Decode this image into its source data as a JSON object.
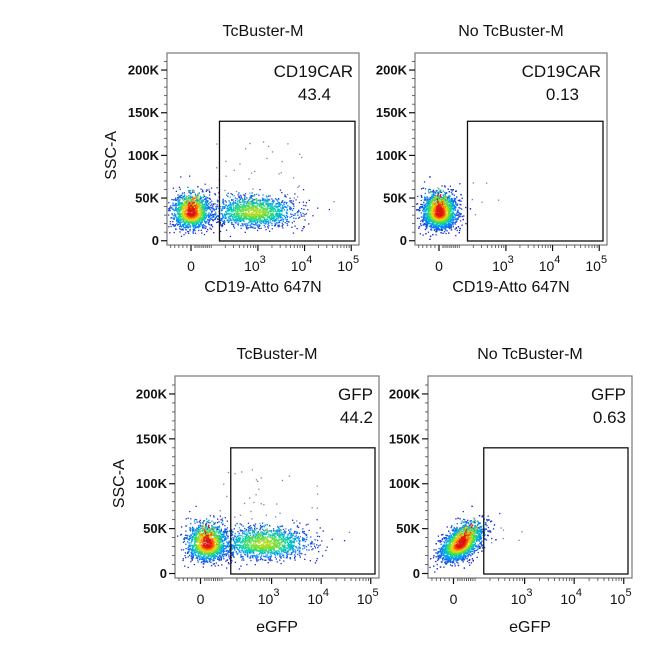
{
  "chart_data": [
    {
      "type": "scatter",
      "subtype": "flow-cytometry-density",
      "panel_position": "top-left",
      "title": "TcBuster-M",
      "xlabel": "CD19-Atto 647N",
      "ylabel": "SSC-A",
      "x_scale": "biexponential",
      "x_tick_labels": [
        {
          "base": "0",
          "exp": ""
        },
        {
          "base": "10",
          "exp": "3"
        },
        {
          "base": "10",
          "exp": "4"
        },
        {
          "base": "10",
          "exp": "5"
        }
      ],
      "y_tick_labels": [
        "0",
        "50K",
        "100K",
        "150K",
        "200K"
      ],
      "y_ticks": [
        0,
        50000,
        100000,
        150000,
        200000
      ],
      "ylim": [
        -5000,
        220000
      ],
      "gate": {
        "name": "CD19CAR",
        "percent": "43.4",
        "x_from": 150,
        "x_to": 100000,
        "y_from": 0,
        "y_to": 140000
      },
      "populations": [
        {
          "center_x": 0,
          "center_y": 33000,
          "weight": 0.57
        },
        {
          "center_x": 800,
          "center_y": 33000,
          "weight": 0.43
        }
      ]
    },
    {
      "type": "scatter",
      "subtype": "flow-cytometry-density",
      "panel_position": "top-right",
      "title": "No TcBuster-M",
      "xlabel": "CD19-Atto 647N",
      "ylabel": "",
      "x_scale": "biexponential",
      "x_tick_labels": [
        {
          "base": "0",
          "exp": ""
        },
        {
          "base": "10",
          "exp": "3"
        },
        {
          "base": "10",
          "exp": "4"
        },
        {
          "base": "10",
          "exp": "5"
        }
      ],
      "y_tick_labels": [
        "0",
        "50K",
        "100K",
        "150K",
        "200K"
      ],
      "y_ticks": [
        0,
        50000,
        100000,
        150000,
        200000
      ],
      "ylim": [
        -5000,
        220000
      ],
      "gate": {
        "name": "CD19CAR",
        "percent": "0.13",
        "x_from": 150,
        "x_to": 100000,
        "y_from": 0,
        "y_to": 140000
      },
      "populations": [
        {
          "center_x": 0,
          "center_y": 33000,
          "weight": 0.9987
        }
      ]
    },
    {
      "type": "scatter",
      "subtype": "flow-cytometry-density",
      "panel_position": "bottom-left",
      "title": "TcBuster-M",
      "xlabel": "eGFP",
      "ylabel": "SSC-A",
      "x_scale": "biexponential",
      "x_tick_labels": [
        {
          "base": "0",
          "exp": ""
        },
        {
          "base": "10",
          "exp": "3"
        },
        {
          "base": "10",
          "exp": "4"
        },
        {
          "base": "10",
          "exp": "5"
        }
      ],
      "y_tick_labels": [
        "0",
        "50K",
        "100K",
        "150K",
        "200K"
      ],
      "y_ticks": [
        0,
        50000,
        100000,
        150000,
        200000
      ],
      "ylim": [
        -5000,
        220000
      ],
      "gate": {
        "name": "GFP",
        "percent": "44.2",
        "x_from": 150,
        "x_to": 100000,
        "y_from": 0,
        "y_to": 140000
      },
      "populations": [
        {
          "center_x": 30,
          "center_y": 33000,
          "weight": 0.56
        },
        {
          "center_x": 700,
          "center_y": 33000,
          "weight": 0.44
        }
      ]
    },
    {
      "type": "scatter",
      "subtype": "flow-cytometry-density",
      "panel_position": "bottom-right",
      "title": "No TcBuster-M",
      "xlabel": "eGFP",
      "ylabel": "",
      "x_scale": "biexponential",
      "x_tick_labels": [
        {
          "base": "0",
          "exp": ""
        },
        {
          "base": "10",
          "exp": "3"
        },
        {
          "base": "10",
          "exp": "4"
        },
        {
          "base": "10",
          "exp": "5"
        }
      ],
      "y_tick_labels": [
        "0",
        "50K",
        "100K",
        "150K",
        "200K"
      ],
      "y_ticks": [
        0,
        50000,
        100000,
        150000,
        200000
      ],
      "ylim": [
        -5000,
        220000
      ],
      "gate": {
        "name": "GFP",
        "percent": "0.63",
        "x_from": 150,
        "x_to": 100000,
        "y_from": 0,
        "y_to": 140000
      },
      "populations": [
        {
          "center_x": 30,
          "center_y": 33000,
          "weight": 0.9937
        }
      ]
    }
  ]
}
